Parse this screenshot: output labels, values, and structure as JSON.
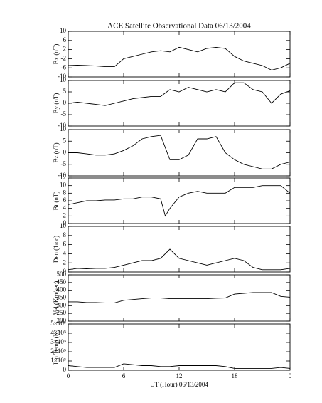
{
  "chart_data": [
    {
      "type": "line",
      "title": "ACE Satellite Observational Data  06/13/2004",
      "ylabel": "Bx (nT)",
      "x": [
        0,
        1,
        2,
        3,
        4,
        5,
        6,
        7,
        8,
        9,
        10,
        11,
        12,
        13,
        14,
        15,
        16,
        17,
        18,
        19,
        20,
        21,
        22,
        23,
        24
      ],
      "values": [
        -5,
        -4.8,
        -5,
        -5.2,
        -5.5,
        -5.5,
        -2,
        -1,
        0,
        1,
        1.5,
        1,
        3,
        2,
        1,
        2.5,
        3,
        2.5,
        -1,
        -3,
        -4,
        -5,
        -7,
        -6,
        -4
      ],
      "color": "#000000",
      "xlim": [
        0,
        24
      ],
      "xticks": [
        0,
        6,
        12,
        18,
        {
          "value": 24,
          "label": "0"
        }
      ],
      "ylim": [
        -10,
        10
      ],
      "yticks": [
        -10,
        -6,
        -2,
        2,
        6,
        10
      ]
    },
    {
      "type": "line",
      "ylabel": "By (nT)",
      "x": [
        0,
        1,
        2,
        3,
        4,
        5,
        6,
        7,
        8,
        9,
        10,
        11,
        12,
        13,
        14,
        15,
        16,
        17,
        18,
        19,
        20,
        21,
        22,
        23,
        24
      ],
      "values": [
        0,
        0.5,
        0,
        -0.5,
        -1,
        0,
        1,
        2,
        2.5,
        3,
        3,
        6,
        5,
        7,
        6,
        5,
        6,
        5,
        9,
        9,
        6,
        5,
        0,
        4,
        5.5
      ],
      "color": "#000000",
      "xlim": [
        0,
        24
      ],
      "xticks": [
        0,
        6,
        12,
        18,
        {
          "value": 24,
          "label": "0"
        }
      ],
      "ylim": [
        -10,
        10
      ],
      "yticks": [
        -10,
        -5,
        0,
        5,
        10
      ]
    },
    {
      "type": "line",
      "ylabel": "Bz (nT)",
      "x": [
        0,
        1,
        2,
        3,
        4,
        5,
        6,
        7,
        8,
        9,
        10,
        11,
        12,
        13,
        14,
        15,
        16,
        17,
        18,
        19,
        20,
        21,
        22,
        23,
        24
      ],
      "values": [
        0,
        0,
        -0.5,
        -1,
        -1,
        -0.5,
        1,
        3,
        6,
        7,
        7.5,
        -3,
        -3,
        -1,
        6,
        6,
        7,
        0,
        -3,
        -5,
        -6,
        -7,
        -7,
        -5,
        -4
      ],
      "color": "#000000",
      "xlim": [
        0,
        24
      ],
      "xticks": [
        0,
        6,
        12,
        18,
        {
          "value": 24,
          "label": "0"
        }
      ],
      "ylim": [
        -10,
        10
      ],
      "yticks": [
        -10,
        -5,
        0,
        5,
        10
      ]
    },
    {
      "type": "line",
      "ylabel": "Bt (nT)",
      "x": [
        0,
        1,
        2,
        3,
        4,
        5,
        6,
        7,
        8,
        9,
        10,
        10.5,
        11,
        12,
        13,
        14,
        15,
        16,
        17,
        18,
        19,
        20,
        21,
        22,
        23,
        24
      ],
      "values": [
        5,
        5.5,
        6,
        6,
        6.2,
        6.2,
        6.5,
        6.5,
        7,
        7,
        6.5,
        2,
        4,
        7,
        8,
        8.5,
        8,
        8,
        8,
        9.5,
        9.5,
        9.5,
        10,
        10,
        10,
        8
      ],
      "color": "#000000",
      "xlim": [
        0,
        24
      ],
      "xticks": [
        0,
        6,
        12,
        18,
        {
          "value": 24,
          "label": "0"
        }
      ],
      "ylim": [
        0,
        12
      ],
      "yticks": [
        0,
        2,
        4,
        6,
        8,
        10,
        12
      ]
    },
    {
      "type": "line",
      "ylabel": "Den (1/cc)",
      "x": [
        0,
        1,
        2,
        3,
        4,
        5,
        6,
        7,
        8,
        9,
        10,
        11,
        12,
        13,
        14,
        15,
        16,
        17,
        18,
        19,
        20,
        21,
        22,
        23,
        24
      ],
      "values": [
        0.5,
        0.8,
        0.7,
        0.8,
        0.8,
        1,
        1.5,
        2,
        2.5,
        2.5,
        3,
        5,
        3,
        2.5,
        2,
        1.5,
        2,
        2.5,
        3,
        2.5,
        1,
        0.5,
        0.5,
        0.5,
        0.8
      ],
      "color": "#000000",
      "xlim": [
        0,
        24
      ],
      "xticks": [
        0,
        6,
        12,
        18,
        {
          "value": 24,
          "label": "0"
        }
      ],
      "ylim": [
        0,
        10
      ],
      "yticks": [
        0,
        2,
        4,
        6,
        8,
        10
      ]
    },
    {
      "type": "line",
      "ylabel": "Vel (Km/sec)",
      "x": [
        0,
        1,
        2,
        3,
        4,
        5,
        6,
        7,
        8,
        9,
        10,
        11,
        12,
        13,
        14,
        15,
        16,
        17,
        18,
        19,
        20,
        21,
        22,
        23,
        24
      ],
      "values": [
        325,
        325,
        320,
        320,
        318,
        318,
        335,
        340,
        345,
        350,
        350,
        345,
        345,
        345,
        345,
        345,
        348,
        350,
        375,
        380,
        385,
        385,
        385,
        360,
        355
      ],
      "color": "#000000",
      "xlim": [
        0,
        24
      ],
      "xticks": [
        0,
        6,
        12,
        18,
        {
          "value": 24,
          "label": "0"
        }
      ],
      "ylim": [
        200,
        500
      ],
      "yticks": [
        200,
        250,
        300,
        350,
        400,
        450,
        500
      ]
    },
    {
      "type": "line",
      "ylabel": "Ion Temp (K)",
      "xlabel": "UT (Hour)  06/13/2004",
      "x": [
        0,
        1,
        2,
        3,
        4,
        5,
        6,
        7,
        8,
        9,
        10,
        11,
        12,
        13,
        14,
        15,
        16,
        17,
        18,
        19,
        20,
        21,
        22,
        23,
        24
      ],
      "values": [
        50000,
        40000,
        30000,
        30000,
        30000,
        30000,
        70000,
        60000,
        50000,
        50000,
        40000,
        40000,
        50000,
        50000,
        50000,
        50000,
        50000,
        40000,
        20000,
        20000,
        20000,
        20000,
        20000,
        30000,
        20000
      ],
      "color": "#000000",
      "xlim": [
        0,
        24
      ],
      "xticks": [
        0,
        6,
        12,
        18,
        {
          "value": 24,
          "label": "0"
        }
      ],
      "ylim": [
        0,
        500000
      ],
      "yticks": [
        0,
        {
          "value": 100000,
          "label": "1×10⁵"
        },
        {
          "value": 200000,
          "label": "2×10⁵"
        },
        {
          "value": 300000,
          "label": "3×10⁵"
        },
        {
          "value": 400000,
          "label": "4×10⁵"
        },
        {
          "value": 500000,
          "label": "5×10⁵"
        }
      ]
    }
  ]
}
